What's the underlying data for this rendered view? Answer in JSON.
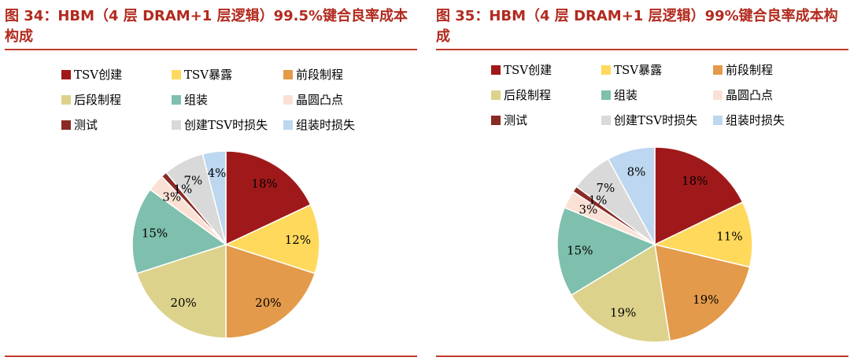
{
  "charts": [
    {
      "title": "图 34：HBM（4 层 DRAM+1 层逻辑）99.5%键合良率成本构成",
      "chart_data": {
        "type": "pie",
        "title": "图 34：HBM（4 层 DRAM+1 层逻辑）99.5%键合良率成本构成",
        "start_angle": 0,
        "direction": "clockwise",
        "legend_position": "top",
        "slices": [
          {
            "label": "TSV创建",
            "value": 18,
            "pct_label": "18%",
            "color": "#a0191a"
          },
          {
            "label": "TSV暴露",
            "value": 12,
            "pct_label": "12%",
            "color": "#ffd95c"
          },
          {
            "label": "前段制程",
            "value": 20,
            "pct_label": "20%",
            "color": "#e39a4a"
          },
          {
            "label": "后段制程",
            "value": 20,
            "pct_label": "20%",
            "color": "#ddd28c"
          },
          {
            "label": "组装",
            "value": 15,
            "pct_label": "15%",
            "color": "#7fbfad"
          },
          {
            "label": "晶圆凸点",
            "value": 3,
            "pct_label": "3%",
            "color": "#fbe1d5"
          },
          {
            "label": "测试",
            "value": 1,
            "pct_label": "1%",
            "color": "#8a2a26"
          },
          {
            "label": "创建TSV时损失",
            "value": 7,
            "pct_label": "7%",
            "color": "#d9d9d9"
          },
          {
            "label": "组装时损失",
            "value": 4,
            "pct_label": "4%",
            "color": "#bcd7ef"
          }
        ]
      }
    },
    {
      "title": "图 35：HBM（4 层 DRAM+1 层逻辑）99%键合良率成本构成",
      "chart_data": {
        "type": "pie",
        "title": "图 35：HBM（4 层 DRAM+1 层逻辑）99%键合良率成本构成",
        "start_angle": 0,
        "direction": "clockwise",
        "legend_position": "top",
        "slices": [
          {
            "label": "TSV创建",
            "value": 18,
            "pct_label": "18%",
            "color": "#a0191a"
          },
          {
            "label": "TSV暴露",
            "value": 11,
            "pct_label": "11%",
            "color": "#ffd95c"
          },
          {
            "label": "前段制程",
            "value": 19,
            "pct_label": "19%",
            "color": "#e39a4a"
          },
          {
            "label": "后段制程",
            "value": 19,
            "pct_label": "19%",
            "color": "#ddd28c"
          },
          {
            "label": "组装",
            "value": 15,
            "pct_label": "15%",
            "color": "#7fbfad"
          },
          {
            "label": "晶圆凸点",
            "value": 3,
            "pct_label": "3%",
            "color": "#fbe1d5"
          },
          {
            "label": "测试",
            "value": 1,
            "pct_label": "1%",
            "color": "#8a2a26"
          },
          {
            "label": "创建TSV时损失",
            "value": 7,
            "pct_label": "7%",
            "color": "#d9d9d9"
          },
          {
            "label": "组装时损失",
            "value": 8,
            "pct_label": "8%",
            "color": "#bcd7ef"
          }
        ]
      }
    }
  ]
}
